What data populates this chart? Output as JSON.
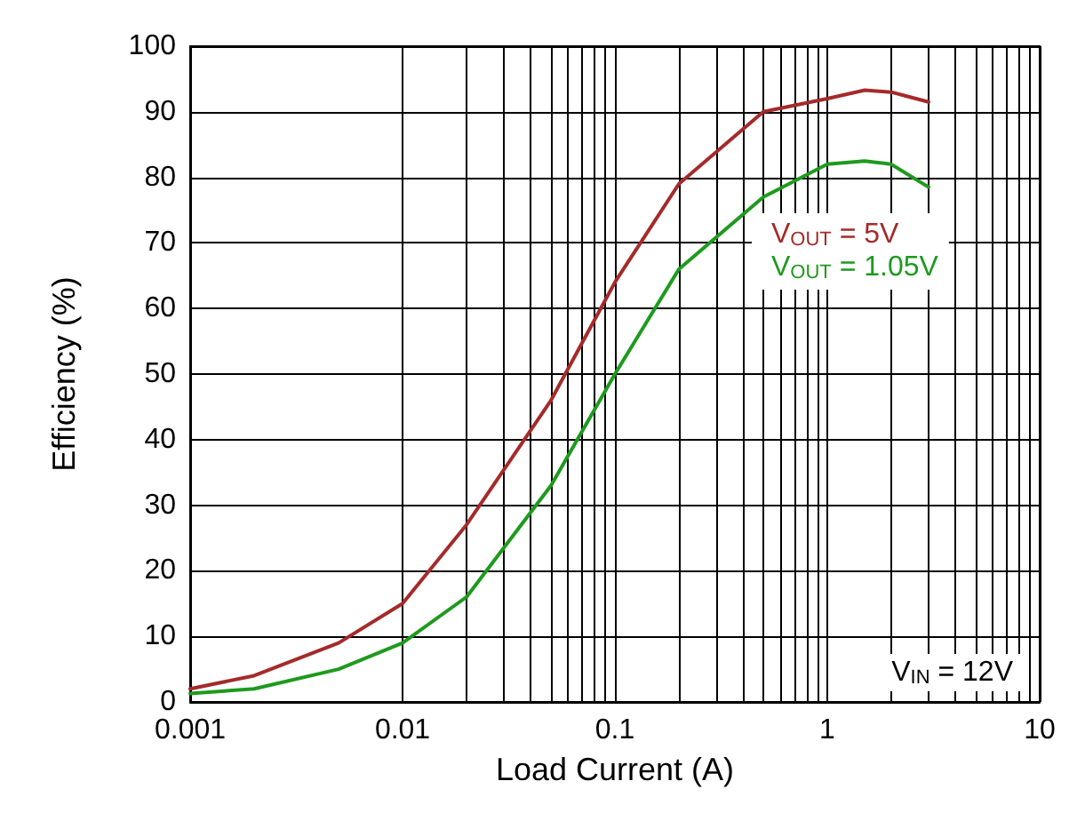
{
  "chart_data": {
    "type": "line",
    "xlabel": "Load Current (A)",
    "ylabel": "Efficiency (%)",
    "log": "x",
    "grid": true,
    "legend": "right",
    "marker": "none",
    "line_style": "solid",
    "xlim": [
      0.001,
      10
    ],
    "xticks": [
      0.001,
      0.01,
      0.1,
      1,
      10
    ],
    "ylim": [
      0,
      100
    ],
    "yticks": [
      0,
      10,
      20,
      30,
      40,
      50,
      60,
      70,
      80,
      90,
      100
    ],
    "x": [
      0.001,
      0.002,
      0.005,
      0.01,
      0.02,
      0.05,
      0.1,
      0.2,
      0.5,
      1,
      1.5,
      2,
      3
    ],
    "series": [
      {
        "name": "V$_{OUT}$ = 5V",
        "color": "#a52a2a",
        "values": [
          2,
          4,
          9,
          15,
          27,
          46,
          64,
          79,
          90,
          92,
          93.3,
          93,
          91.5
        ]
      },
      {
        "name": "V$_{OUT}$ = 1.05V",
        "color": "#1e9a1e",
        "values": [
          1.3,
          2,
          5,
          9,
          16,
          33,
          50,
          66,
          77,
          82,
          82.5,
          82,
          78.5
        ]
      }
    ],
    "annotations": [
      "V$_{IN}$ = 12V"
    ]
  }
}
